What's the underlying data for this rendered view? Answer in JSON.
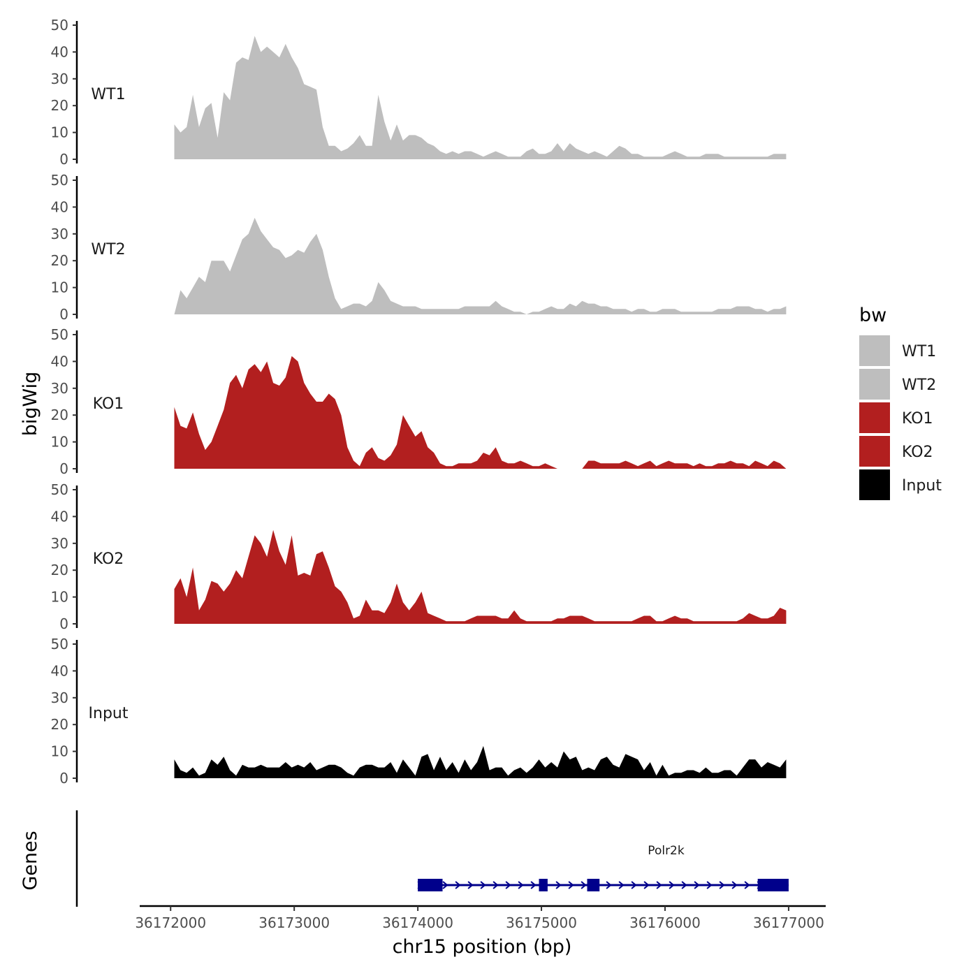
{
  "chart_data": {
    "type": "area",
    "chromosome_axis_label": "chr15 position (bp)",
    "ylabel": "bigWig",
    "genes_label": "Genes",
    "ylim": [
      0,
      50
    ],
    "y_ticks": [
      0,
      10,
      20,
      30,
      40,
      50
    ],
    "xlim": [
      36171750,
      36177300
    ],
    "x_ticks": [
      36172000,
      36173000,
      36174000,
      36175000,
      36176000,
      36177000
    ],
    "x_tick_labels": [
      "36172000",
      "36173000",
      "36174000",
      "36175000",
      "36176000",
      "36177000"
    ],
    "legend": {
      "title": "bw",
      "placement": "right",
      "entries": [
        {
          "label": "WT1",
          "color": "#BEBEBE"
        },
        {
          "label": "WT2",
          "color": "#BEBEBE"
        },
        {
          "label": "KO1",
          "color": "#B21F1F"
        },
        {
          "label": "KO2",
          "color": "#B21F1F"
        },
        {
          "label": "Input",
          "color": "#000000"
        }
      ]
    },
    "series": [
      {
        "name": "WT1",
        "color": "#BEBEBE",
        "x": [
          36172030,
          36172080,
          36172130,
          36172180,
          36172230,
          36172280,
          36172330,
          36172380,
          36172430,
          36172480,
          36172530,
          36172580,
          36172630,
          36172680,
          36172730,
          36172780,
          36172830,
          36172880,
          36172930,
          36172980,
          36173030,
          36173080,
          36173130,
          36173180,
          36173230,
          36173280,
          36173330,
          36173380,
          36173430,
          36173480,
          36173530,
          36173580,
          36173630,
          36173680,
          36173730,
          36173780,
          36173830,
          36173880,
          36173930,
          36173980,
          36174030,
          36174080,
          36174130,
          36174180,
          36174230,
          36174280,
          36174330,
          36174380,
          36174430,
          36174480,
          36174530,
          36174580,
          36174630,
          36174680,
          36174730,
          36174780,
          36174830,
          36174880,
          36174930,
          36174980,
          36175030,
          36175080,
          36175130,
          36175180,
          36175230,
          36175280,
          36175330,
          36175380,
          36175430,
          36175480,
          36175530,
          36175580,
          36175630,
          36175680,
          36175730,
          36175780,
          36175830,
          36175880,
          36175930,
          36175980,
          36176030,
          36176080,
          36176130,
          36176180,
          36176230,
          36176280,
          36176330,
          36176380,
          36176430,
          36176480,
          36176530,
          36176580,
          36176630,
          36176680,
          36176730,
          36176780,
          36176830,
          36176880,
          36176930,
          36176980
        ],
        "values": [
          13,
          10,
          12,
          24,
          12,
          19,
          21,
          8,
          25,
          22,
          36,
          38,
          37,
          46,
          40,
          42,
          40,
          38,
          43,
          38,
          34,
          28,
          27,
          26,
          12,
          5,
          5,
          3,
          4,
          6,
          9,
          5,
          5,
          24,
          14,
          7,
          13,
          7,
          9,
          9,
          8,
          6,
          5,
          3,
          2,
          3,
          2,
          3,
          3,
          2,
          1,
          2,
          3,
          2,
          1,
          1,
          1,
          3,
          4,
          2,
          2,
          3,
          6,
          3,
          6,
          4,
          3,
          2,
          3,
          2,
          1,
          3,
          5,
          4,
          2,
          2,
          1,
          1,
          1,
          1,
          2,
          3,
          2,
          1,
          1,
          1,
          2,
          2,
          2,
          1,
          1,
          1,
          1,
          1,
          1,
          1,
          1,
          2,
          2,
          2
        ]
      },
      {
        "name": "WT2",
        "color": "#BEBEBE",
        "x": [
          36172030,
          36172080,
          36172130,
          36172180,
          36172230,
          36172280,
          36172330,
          36172380,
          36172430,
          36172480,
          36172530,
          36172580,
          36172630,
          36172680,
          36172730,
          36172780,
          36172830,
          36172880,
          36172930,
          36172980,
          36173030,
          36173080,
          36173130,
          36173180,
          36173230,
          36173280,
          36173330,
          36173380,
          36173430,
          36173480,
          36173530,
          36173580,
          36173630,
          36173680,
          36173730,
          36173780,
          36173830,
          36173880,
          36173930,
          36173980,
          36174030,
          36174080,
          36174130,
          36174180,
          36174230,
          36174280,
          36174330,
          36174380,
          36174430,
          36174480,
          36174530,
          36174580,
          36174630,
          36174680,
          36174730,
          36174780,
          36174830,
          36174880,
          36174930,
          36174980,
          36175030,
          36175080,
          36175130,
          36175180,
          36175230,
          36175280,
          36175330,
          36175380,
          36175430,
          36175480,
          36175530,
          36175580,
          36175630,
          36175680,
          36175730,
          36175780,
          36175830,
          36175880,
          36175930,
          36175980,
          36176030,
          36176080,
          36176130,
          36176180,
          36176230,
          36176280,
          36176330,
          36176380,
          36176430,
          36176480,
          36176530,
          36176580,
          36176630,
          36176680,
          36176730,
          36176780,
          36176830,
          36176880,
          36176930,
          36176980
        ],
        "values": [
          0,
          9,
          6,
          10,
          14,
          12,
          20,
          20,
          20,
          16,
          22,
          28,
          30,
          36,
          31,
          28,
          25,
          24,
          21,
          22,
          24,
          23,
          27,
          30,
          24,
          14,
          6,
          2,
          3,
          4,
          4,
          3,
          5,
          12,
          9,
          5,
          4,
          3,
          3,
          3,
          2,
          2,
          2,
          2,
          2,
          2,
          2,
          3,
          3,
          3,
          3,
          3,
          5,
          3,
          2,
          1,
          1,
          0,
          1,
          1,
          2,
          3,
          2,
          2,
          4,
          3,
          5,
          4,
          4,
          3,
          3,
          2,
          2,
          2,
          1,
          2,
          2,
          1,
          1,
          2,
          2,
          2,
          1,
          1,
          1,
          1,
          1,
          1,
          2,
          2,
          2,
          3,
          3,
          3,
          2,
          2,
          1,
          2,
          2,
          3
        ]
      },
      {
        "name": "KO1",
        "color": "#B21F1F",
        "x": [
          36172030,
          36172080,
          36172130,
          36172180,
          36172230,
          36172280,
          36172330,
          36172380,
          36172430,
          36172480,
          36172530,
          36172580,
          36172630,
          36172680,
          36172730,
          36172780,
          36172830,
          36172880,
          36172930,
          36172980,
          36173030,
          36173080,
          36173130,
          36173180,
          36173230,
          36173280,
          36173330,
          36173380,
          36173430,
          36173480,
          36173530,
          36173580,
          36173630,
          36173680,
          36173730,
          36173780,
          36173830,
          36173880,
          36173930,
          36173980,
          36174030,
          36174080,
          36174130,
          36174180,
          36174230,
          36174280,
          36174330,
          36174380,
          36174430,
          36174480,
          36174530,
          36174580,
          36174630,
          36174680,
          36174730,
          36174780,
          36174830,
          36174880,
          36174930,
          36174980,
          36175030,
          36175080,
          36175130,
          36175180,
          36175230,
          36175280,
          36175330,
          36175380,
          36175430,
          36175480,
          36175530,
          36175580,
          36175630,
          36175680,
          36175730,
          36175780,
          36175830,
          36175880,
          36175930,
          36175980,
          36176030,
          36176080,
          36176130,
          36176180,
          36176230,
          36176280,
          36176330,
          36176380,
          36176430,
          36176480,
          36176530,
          36176580,
          36176630,
          36176680,
          36176730,
          36176780,
          36176830,
          36176880,
          36176930,
          36176980
        ],
        "values": [
          23,
          16,
          15,
          21,
          13,
          7,
          10,
          16,
          22,
          32,
          35,
          30,
          37,
          39,
          36,
          40,
          32,
          31,
          34,
          42,
          40,
          32,
          28,
          25,
          25,
          28,
          26,
          20,
          8,
          3,
          1,
          6,
          8,
          4,
          3,
          5,
          9,
          20,
          16,
          12,
          14,
          8,
          6,
          2,
          1,
          1,
          2,
          2,
          2,
          3,
          6,
          5,
          8,
          3,
          2,
          2,
          3,
          2,
          1,
          1,
          2,
          1,
          0,
          0,
          0,
          0,
          0,
          3,
          3,
          2,
          2,
          2,
          2,
          3,
          2,
          1,
          2,
          3,
          1,
          2,
          3,
          2,
          2,
          2,
          1,
          2,
          1,
          1,
          2,
          2,
          3,
          2,
          2,
          1,
          3,
          2,
          1,
          3,
          2,
          0
        ]
      },
      {
        "name": "KO2",
        "color": "#B21F1F",
        "x": [
          36172030,
          36172080,
          36172130,
          36172180,
          36172230,
          36172280,
          36172330,
          36172380,
          36172430,
          36172480,
          36172530,
          36172580,
          36172630,
          36172680,
          36172730,
          36172780,
          36172830,
          36172880,
          36172930,
          36172980,
          36173030,
          36173080,
          36173130,
          36173180,
          36173230,
          36173280,
          36173330,
          36173380,
          36173430,
          36173480,
          36173530,
          36173580,
          36173630,
          36173680,
          36173730,
          36173780,
          36173830,
          36173880,
          36173930,
          36173980,
          36174030,
          36174080,
          36174130,
          36174180,
          36174230,
          36174280,
          36174330,
          36174380,
          36174430,
          36174480,
          36174530,
          36174580,
          36174630,
          36174680,
          36174730,
          36174780,
          36174830,
          36174880,
          36174930,
          36174980,
          36175030,
          36175080,
          36175130,
          36175180,
          36175230,
          36175280,
          36175330,
          36175380,
          36175430,
          36175480,
          36175530,
          36175580,
          36175630,
          36175680,
          36175730,
          36175780,
          36175830,
          36175880,
          36175930,
          36175980,
          36176030,
          36176080,
          36176130,
          36176180,
          36176230,
          36176280,
          36176330,
          36176380,
          36176430,
          36176480,
          36176530,
          36176580,
          36176630,
          36176680,
          36176730,
          36176780,
          36176830,
          36176880,
          36176930,
          36176980
        ],
        "values": [
          13,
          17,
          10,
          21,
          5,
          9,
          16,
          15,
          12,
          15,
          20,
          17,
          25,
          33,
          30,
          25,
          35,
          27,
          22,
          33,
          18,
          19,
          18,
          26,
          27,
          21,
          14,
          12,
          8,
          2,
          3,
          9,
          5,
          5,
          4,
          8,
          15,
          8,
          5,
          8,
          12,
          4,
          3,
          2,
          1,
          1,
          1,
          1,
          2,
          3,
          3,
          3,
          3,
          2,
          2,
          5,
          2,
          1,
          1,
          1,
          1,
          1,
          2,
          2,
          3,
          3,
          3,
          2,
          1,
          1,
          1,
          1,
          1,
          1,
          1,
          2,
          3,
          3,
          1,
          1,
          2,
          3,
          2,
          2,
          1,
          1,
          1,
          1,
          1,
          1,
          1,
          1,
          2,
          4,
          3,
          2,
          2,
          3,
          6,
          5
        ]
      },
      {
        "name": "Input",
        "color": "#000000",
        "x": [
          36172030,
          36172080,
          36172130,
          36172180,
          36172230,
          36172280,
          36172330,
          36172380,
          36172430,
          36172480,
          36172530,
          36172580,
          36172630,
          36172680,
          36172730,
          36172780,
          36172830,
          36172880,
          36172930,
          36172980,
          36173030,
          36173080,
          36173130,
          36173180,
          36173230,
          36173280,
          36173330,
          36173380,
          36173430,
          36173480,
          36173530,
          36173580,
          36173630,
          36173680,
          36173730,
          36173780,
          36173830,
          36173880,
          36173930,
          36173980,
          36174030,
          36174080,
          36174130,
          36174180,
          36174230,
          36174280,
          36174330,
          36174380,
          36174430,
          36174480,
          36174530,
          36174580,
          36174630,
          36174680,
          36174730,
          36174780,
          36174830,
          36174880,
          36174930,
          36174980,
          36175030,
          36175080,
          36175130,
          36175180,
          36175230,
          36175280,
          36175330,
          36175380,
          36175430,
          36175480,
          36175530,
          36175580,
          36175630,
          36175680,
          36175730,
          36175780,
          36175830,
          36175880,
          36175930,
          36175980,
          36176030,
          36176080,
          36176130,
          36176180,
          36176230,
          36176280,
          36176330,
          36176380,
          36176430,
          36176480,
          36176530,
          36176580,
          36176630,
          36176680,
          36176730,
          36176780,
          36176830,
          36176880,
          36176930,
          36176980
        ],
        "values": [
          7,
          3,
          2,
          4,
          1,
          2,
          7,
          5,
          8,
          3,
          1,
          5,
          4,
          4,
          5,
          4,
          4,
          4,
          6,
          4,
          5,
          4,
          6,
          3,
          4,
          5,
          5,
          4,
          2,
          1,
          4,
          5,
          5,
          4,
          4,
          6,
          2,
          7,
          4,
          1,
          8,
          9,
          3,
          8,
          3,
          6,
          2,
          7,
          3,
          6,
          12,
          3,
          4,
          4,
          1,
          3,
          4,
          2,
          4,
          7,
          4,
          6,
          4,
          10,
          7,
          8,
          3,
          4,
          3,
          7,
          8,
          5,
          4,
          9,
          8,
          7,
          3,
          6,
          1,
          5,
          1,
          2,
          2,
          3,
          3,
          2,
          4,
          2,
          2,
          3,
          3,
          1,
          4,
          7,
          7,
          4,
          6,
          5,
          4,
          7
        ]
      }
    ],
    "genes": [
      {
        "name": "Polr2k",
        "strand": "+",
        "start": 36174000,
        "end": 36177000,
        "exons": [
          [
            36174000,
            36174200
          ],
          [
            36174980,
            36175050
          ],
          [
            36175370,
            36175470
          ],
          [
            36176750,
            36177000
          ]
        ],
        "color": "#00008B"
      }
    ]
  }
}
